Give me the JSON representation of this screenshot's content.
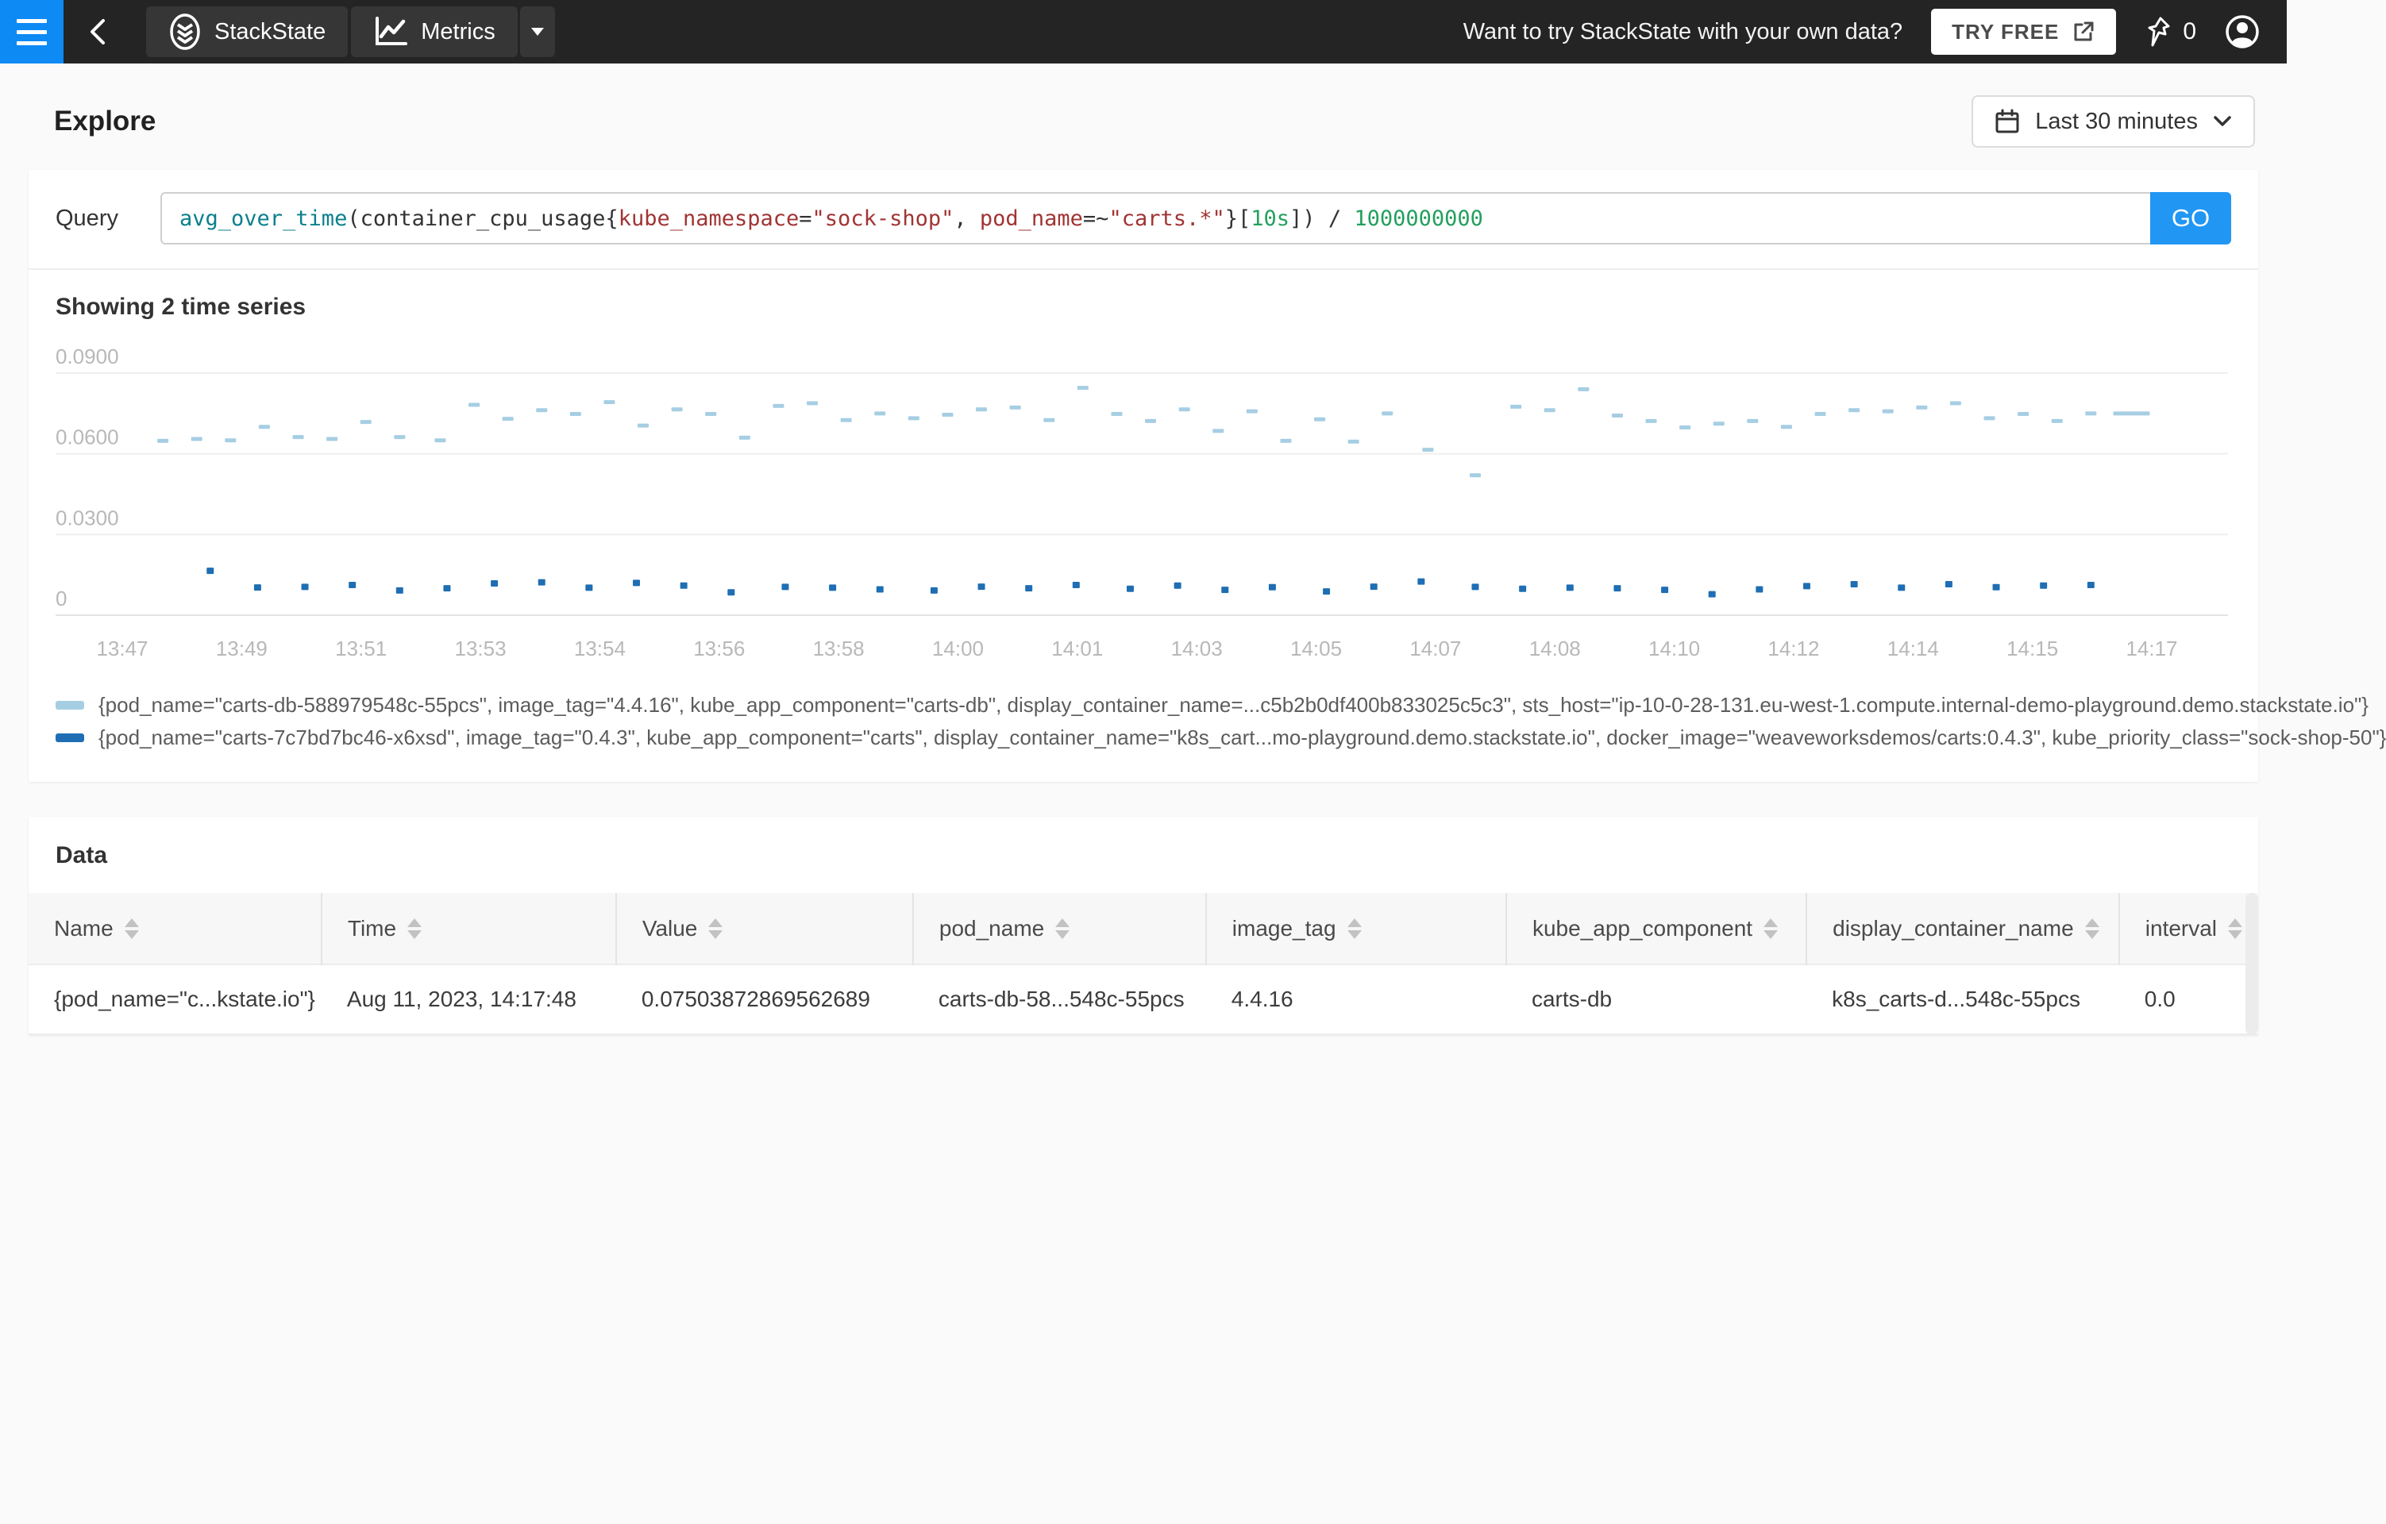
{
  "colors": {
    "accent_blue": "#0d8af4",
    "go_blue": "#2196f3",
    "series_carts_db": "#a6cee3",
    "series_carts": "#1f6eb3"
  },
  "navbar": {
    "tabs": [
      {
        "label": "StackState"
      },
      {
        "label": "Metrics"
      }
    ],
    "promo_text": "Want to try StackState with your own data?",
    "try_free_label": "TRY FREE",
    "pin_count": "0"
  },
  "page": {
    "title": "Explore"
  },
  "time_range": {
    "label": "Last 30 minutes"
  },
  "query": {
    "label": "Query",
    "go_label": "GO",
    "tokens": [
      {
        "type": "function",
        "text": "avg_over_time"
      },
      {
        "type": "plain",
        "text": "(container_cpu_usage{"
      },
      {
        "type": "label",
        "text": "kube_namespace"
      },
      {
        "type": "plain",
        "text": "="
      },
      {
        "type": "string",
        "text": "\"sock-shop\""
      },
      {
        "type": "plain",
        "text": ", "
      },
      {
        "type": "label",
        "text": "pod_name"
      },
      {
        "type": "plain",
        "text": "=~"
      },
      {
        "type": "string",
        "text": "\"carts.*\""
      },
      {
        "type": "plain",
        "text": "}["
      },
      {
        "type": "number",
        "text": "10s"
      },
      {
        "type": "plain",
        "text": "]) / "
      },
      {
        "type": "number",
        "text": "1000000000"
      }
    ]
  },
  "chart_data": {
    "type": "scatter",
    "title": "Showing 2 time series",
    "x_ticks": [
      "13:47",
      "13:49",
      "13:51",
      "13:53",
      "13:54",
      "13:56",
      "13:58",
      "14:00",
      "14:01",
      "14:03",
      "14:05",
      "14:07",
      "14:08",
      "14:10",
      "14:12",
      "14:14",
      "14:15",
      "14:17"
    ],
    "y_ticks": [
      {
        "label": "0.0900",
        "value": 0.09
      },
      {
        "label": "0.0600",
        "value": 0.06
      },
      {
        "label": "0.0300",
        "value": 0.03
      },
      {
        "label": "0",
        "value": 0
      }
    ],
    "ylim": [
      0,
      0.105
    ],
    "x_range_minutes": [
      0,
      30
    ],
    "grid": true,
    "legend_position": "bottom",
    "series": [
      {
        "name": "carts-db-588979548c-55pcs",
        "color": "#a6cee3",
        "marker": "dash",
        "points": [
          [
            0.6,
            0.0648
          ],
          [
            1.1,
            0.0655
          ],
          [
            1.6,
            0.065
          ],
          [
            2.1,
            0.07
          ],
          [
            2.6,
            0.0662
          ],
          [
            3.1,
            0.0655
          ],
          [
            3.6,
            0.0718
          ],
          [
            4.1,
            0.0662
          ],
          [
            4.7,
            0.065
          ],
          [
            5.2,
            0.0782
          ],
          [
            5.7,
            0.073
          ],
          [
            6.2,
            0.0762
          ],
          [
            6.7,
            0.0748
          ],
          [
            7.2,
            0.0792
          ],
          [
            7.7,
            0.0705
          ],
          [
            8.2,
            0.0765
          ],
          [
            8.7,
            0.0748
          ],
          [
            9.2,
            0.066
          ],
          [
            9.7,
            0.0778
          ],
          [
            10.2,
            0.0788
          ],
          [
            10.7,
            0.0725
          ],
          [
            11.2,
            0.075
          ],
          [
            11.7,
            0.0732
          ],
          [
            12.2,
            0.0745
          ],
          [
            12.7,
            0.0765
          ],
          [
            13.2,
            0.0772
          ],
          [
            13.7,
            0.0725
          ],
          [
            14.2,
            0.0845
          ],
          [
            14.7,
            0.0748
          ],
          [
            15.2,
            0.0722
          ],
          [
            15.7,
            0.0765
          ],
          [
            16.2,
            0.0685
          ],
          [
            16.7,
            0.0758
          ],
          [
            17.2,
            0.0648
          ],
          [
            17.7,
            0.0728
          ],
          [
            18.2,
            0.0645
          ],
          [
            18.7,
            0.075
          ],
          [
            19.3,
            0.0615
          ],
          [
            20.0,
            0.052
          ],
          [
            20.6,
            0.0775
          ],
          [
            21.1,
            0.0762
          ],
          [
            21.6,
            0.084
          ],
          [
            22.1,
            0.0742
          ],
          [
            22.6,
            0.0722
          ],
          [
            23.1,
            0.0698
          ],
          [
            23.6,
            0.0712
          ],
          [
            24.1,
            0.0722
          ],
          [
            24.6,
            0.07
          ],
          [
            25.1,
            0.0748
          ],
          [
            25.6,
            0.0762
          ],
          [
            26.1,
            0.0758
          ],
          [
            26.6,
            0.0772
          ],
          [
            27.1,
            0.0788
          ],
          [
            27.6,
            0.0732
          ],
          [
            28.1,
            0.0748
          ],
          [
            28.6,
            0.0722
          ],
          [
            29.1,
            0.075
          ],
          [
            29.7,
            0.075,
            "wide"
          ]
        ]
      },
      {
        "name": "carts-7c7bd7bc46-x6xsd",
        "color": "#1f6eb3",
        "marker": "square",
        "points": [
          [
            1.3,
            0.0165
          ],
          [
            2.0,
            0.0103
          ],
          [
            2.7,
            0.0105
          ],
          [
            3.4,
            0.0112
          ],
          [
            4.1,
            0.0092
          ],
          [
            4.8,
            0.01
          ],
          [
            5.5,
            0.0118
          ],
          [
            6.2,
            0.0122
          ],
          [
            6.9,
            0.0102
          ],
          [
            7.6,
            0.012
          ],
          [
            8.3,
            0.011
          ],
          [
            9.0,
            0.0085
          ],
          [
            9.8,
            0.0105
          ],
          [
            10.5,
            0.0102
          ],
          [
            11.2,
            0.0096
          ],
          [
            12.0,
            0.0092
          ],
          [
            12.7,
            0.0106
          ],
          [
            13.4,
            0.01
          ],
          [
            14.1,
            0.0112
          ],
          [
            14.9,
            0.0098
          ],
          [
            15.6,
            0.011
          ],
          [
            16.3,
            0.0094
          ],
          [
            17.0,
            0.0104
          ],
          [
            17.8,
            0.0088
          ],
          [
            18.5,
            0.0106
          ],
          [
            19.2,
            0.0125
          ],
          [
            20.0,
            0.0105
          ],
          [
            20.7,
            0.0098
          ],
          [
            21.4,
            0.0102
          ],
          [
            22.1,
            0.01
          ],
          [
            22.8,
            0.0094
          ],
          [
            23.5,
            0.0078
          ],
          [
            24.2,
            0.0096
          ],
          [
            24.9,
            0.0108
          ],
          [
            25.6,
            0.0115
          ],
          [
            26.3,
            0.0102
          ],
          [
            27.0,
            0.0115
          ],
          [
            27.7,
            0.0104
          ],
          [
            28.4,
            0.011
          ],
          [
            29.1,
            0.0112
          ]
        ]
      }
    ],
    "legend": [
      {
        "color": "#a6cee3",
        "text": "{pod_name=\"carts-db-588979548c-55pcs\", image_tag=\"4.4.16\", kube_app_component=\"carts-db\", display_container_name=...c5b2b0df400b833025c5c3\", sts_host=\"ip-10-0-28-131.eu-west-1.compute.internal-demo-playground.demo.stackstate.io\"}"
      },
      {
        "color": "#1f6eb3",
        "text": "{pod_name=\"carts-7c7bd7bc46-x6xsd\", image_tag=\"0.4.3\", kube_app_component=\"carts\", display_container_name=\"k8s_cart...mo-playground.demo.stackstate.io\", docker_image=\"weaveworksdemos/carts:0.4.3\", kube_priority_class=\"sock-shop-50\"}"
      }
    ]
  },
  "data_section": {
    "title": "Data",
    "columns": [
      "Name",
      "Time",
      "Value",
      "pod_name",
      "image_tag",
      "kube_app_component",
      "display_container_name",
      "interval"
    ],
    "rows": [
      [
        "{pod_name=\"c...kstate.io\"}",
        "Aug 11, 2023, 14:17:48",
        "0.07503872869562689",
        "carts-db-58...548c-55pcs",
        "4.4.16",
        "carts-db",
        "k8s_carts-d...548c-55pcs",
        "0.0"
      ]
    ]
  }
}
